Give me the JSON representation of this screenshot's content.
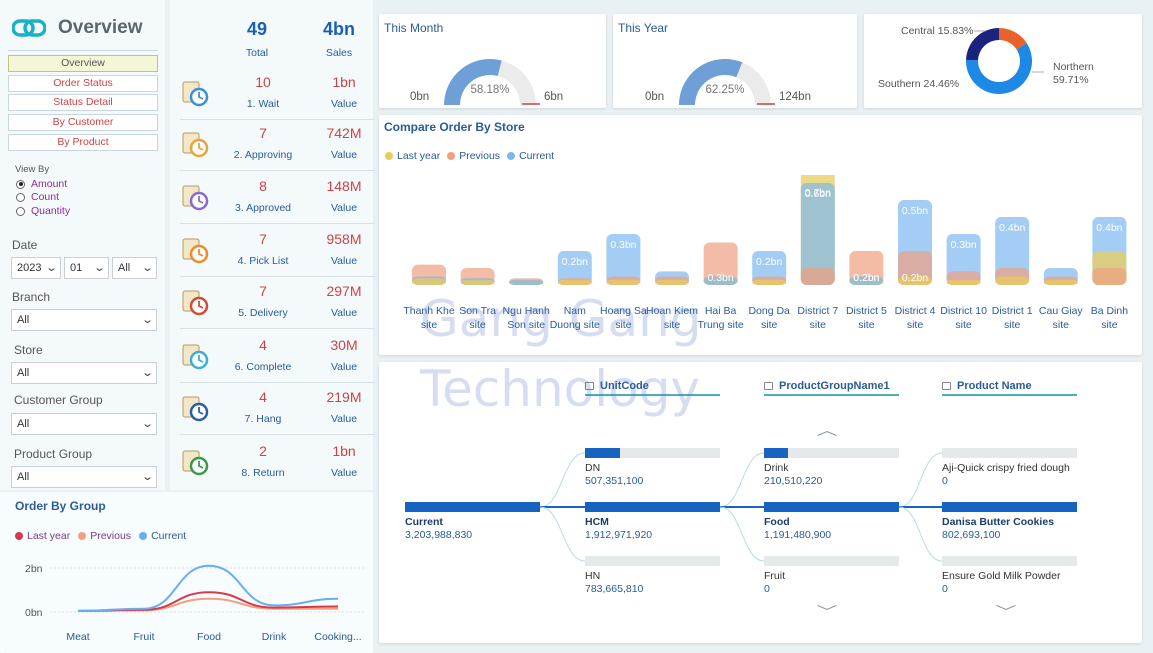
{
  "app": {
    "title": "Overview"
  },
  "nav": [
    {
      "label": "Overview",
      "active": true
    },
    {
      "label": "Order Status",
      "active": false
    },
    {
      "label": "Status Detail",
      "active": false
    },
    {
      "label": "By Customer",
      "active": false
    },
    {
      "label": "By Product",
      "active": false
    }
  ],
  "view_by": {
    "label": "View By",
    "options": [
      "Amount",
      "Count",
      "Quantity"
    ],
    "selected": "Amount"
  },
  "filters": {
    "date_label": "Date",
    "year": "2023",
    "month": "01",
    "day": "All",
    "branch_label": "Branch",
    "branch": "All",
    "store_label": "Store",
    "store": "All",
    "customer_group_label": "Customer Group",
    "customer_group": "All",
    "product_group_label": "Product Group",
    "product_group": "All"
  },
  "summary": {
    "total": "49",
    "total_label": "Total",
    "sales": "4bn",
    "sales_label": "Sales"
  },
  "status_rows": [
    {
      "count": "10",
      "label": "1. Wait",
      "value": "1bn",
      "value_label": "Value",
      "icon": "clock-list-icon"
    },
    {
      "count": "7",
      "label": "2. Approving",
      "value": "742M",
      "value_label": "Value",
      "icon": "approving-icon"
    },
    {
      "count": "8",
      "label": "3. Approved",
      "value": "148M",
      "value_label": "Value",
      "icon": "approved-doc-icon"
    },
    {
      "count": "7",
      "label": "4. Pick List",
      "value": "958M",
      "value_label": "Value",
      "icon": "box-icon"
    },
    {
      "count": "7",
      "label": "5. Delivery",
      "value": "297M",
      "value_label": "Value",
      "icon": "delivery-truck-icon"
    },
    {
      "count": "4",
      "label": "6. Complete",
      "value": "30M",
      "value_label": "Value",
      "icon": "check-icon"
    },
    {
      "count": "4",
      "label": "7. Hang",
      "value": "219M",
      "value_label": "Value",
      "icon": "close-sign-icon"
    },
    {
      "count": "2",
      "label": "8. Return",
      "value": "1bn",
      "value_label": "Value",
      "icon": "return-icon"
    }
  ],
  "gauges": [
    {
      "title": "This Month",
      "min": "0bn",
      "max": "6bn",
      "value_label": "58.18%",
      "fraction": 0.5818
    },
    {
      "title": "This Year",
      "min": "0bn",
      "max": "124bn",
      "value_label": "62.25%",
      "fraction": 0.6225
    }
  ],
  "region_donut": {
    "slices": [
      {
        "label": "Northern",
        "pct": "59.71%",
        "value": 59.71,
        "color": "#1e88e5"
      },
      {
        "label": "Southern",
        "pct": "24.46%",
        "value": 24.46,
        "color": "#1a237e"
      },
      {
        "label": "Central",
        "pct": "15.83%",
        "value": 15.83,
        "color": "#e8622a"
      }
    ]
  },
  "store_chart": {
    "title": "Compare Order By Store",
    "legend": [
      {
        "name": "Last year",
        "color": "#e8cc5e"
      },
      {
        "name": "Previous",
        "color": "#f0a080"
      },
      {
        "name": "Current",
        "color": "#7cb8f0"
      }
    ],
    "stores": [
      "Thanh Khe site",
      "Son Tra site",
      "Ngu Hanh Son site",
      "Nam Duong site",
      "Hoang Sa site",
      "Hoan Kiem site",
      "Hai Ba Trung site",
      "Dong Da site",
      "District 7 site",
      "District 5 site",
      "District 4 site",
      "District 10 site",
      "District 1 site",
      "Cau Giay site",
      "Ba Dinh site"
    ],
    "labels": [
      "",
      "",
      "",
      "0.2bn",
      "0.3bn",
      "",
      "0.3bn",
      "0.2bn",
      "0.6bn",
      "0.2bn",
      "0.5bn",
      "0.3bn",
      "0.4bn",
      "",
      "0.4bn"
    ],
    "labels_secondary": [
      "",
      "",
      "",
      "",
      "",
      "",
      "",
      "",
      "0.7bn",
      "0.2bn",
      "0.2bn",
      "",
      "",
      "",
      ""
    ],
    "last_year": [
      0.04,
      0.03,
      0.03,
      0.03,
      0.03,
      0.03,
      0.05,
      0.03,
      0.7,
      0.05,
      0.05,
      0.03,
      0.05,
      0.03,
      0.2
    ],
    "previous": [
      0.12,
      0.1,
      0.04,
      0.04,
      0.05,
      0.05,
      0.25,
      0.05,
      0.1,
      0.2,
      0.2,
      0.08,
      0.1,
      0.05,
      0.1
    ],
    "current": [
      0.05,
      0.04,
      0.03,
      0.2,
      0.3,
      0.08,
      0.05,
      0.2,
      0.6,
      0.05,
      0.5,
      0.3,
      0.4,
      0.1,
      0.4
    ]
  },
  "group_chart": {
    "title": "Order By Group",
    "legend": [
      {
        "name": "Last year",
        "color": "#d63a4a"
      },
      {
        "name": "Previous",
        "color": "#f0a080"
      },
      {
        "name": "Current",
        "color": "#6aaef0"
      }
    ],
    "y_ticks": [
      "2bn",
      "0bn"
    ],
    "categories": [
      "Meat",
      "Fruit",
      "Food",
      "Drink",
      "Cooking..."
    ],
    "last_year": [
      0.05,
      0.1,
      0.9,
      0.2,
      0.25
    ],
    "previous": [
      0.05,
      0.08,
      0.6,
      0.15,
      0.15
    ],
    "current": [
      0.05,
      0.15,
      2.1,
      0.3,
      0.6
    ]
  },
  "decomp": {
    "headers": [
      "UnitCode",
      "ProductGroupName1",
      "Product Name"
    ],
    "root": {
      "name": "Current",
      "value": "3,203,988,830"
    },
    "level1": [
      {
        "name": "DN",
        "value": "507,351,100",
        "fraction": 0.26
      },
      {
        "name": "HCM",
        "value": "1,912,971,920",
        "fraction": 1.0
      },
      {
        "name": "HN",
        "value": "783,665,810",
        "fraction": 0.0
      }
    ],
    "level2": [
      {
        "name": "Drink",
        "value": "210,510,220",
        "fraction": 0.18
      },
      {
        "name": "Food",
        "value": "1,191,480,900",
        "fraction": 1.0
      },
      {
        "name": "Fruit",
        "value": "0",
        "fraction": 0.0
      }
    ],
    "level3": [
      {
        "name": "Aji-Quick crispy fried dough",
        "value": "0",
        "fraction": 0.0
      },
      {
        "name": "Danisa Butter Cookies",
        "value": "802,693,100",
        "fraction": 1.0
      },
      {
        "name": "Ensure Gold Milk Powder",
        "value": "0",
        "fraction": 0.0
      }
    ]
  },
  "watermark": {
    "line1": "Gang Gang",
    "line2": "Technology"
  }
}
